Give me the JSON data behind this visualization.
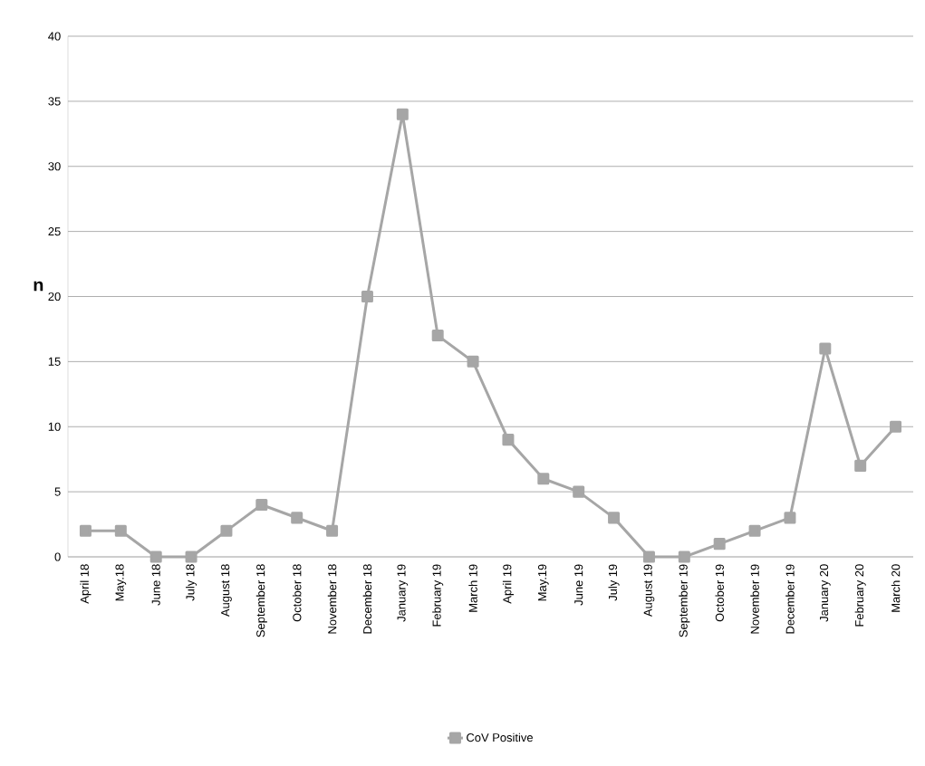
{
  "chart_data": {
    "type": "line",
    "ylabel": "n",
    "categories": [
      "April 18",
      "May.18",
      "June 18",
      "July 18",
      "August 18",
      "September 18",
      "October 18",
      "November 18",
      "December 18",
      "January 19",
      "February 19",
      "March 19",
      "April 19",
      "May.19",
      "June 19",
      "July 19",
      "August 19",
      "September 19",
      "October 19",
      "November 19",
      "December 19",
      "January 20",
      "February 20",
      "March 20"
    ],
    "series": [
      {
        "name": "CoV Positive",
        "color": "#a6a6a6",
        "values": [
          2,
          2,
          0,
          0,
          2,
          4,
          3,
          2,
          20,
          34,
          17,
          15,
          9,
          6,
          5,
          3,
          0,
          0,
          1,
          2,
          3,
          16,
          7,
          10
        ]
      }
    ],
    "ylim": [
      0,
      40
    ],
    "yticks": [
      0,
      5,
      10,
      15,
      20,
      25,
      30,
      35,
      40
    ],
    "grid": "y",
    "legend": "bottom",
    "marker": "square",
    "line_style": "solid"
  }
}
